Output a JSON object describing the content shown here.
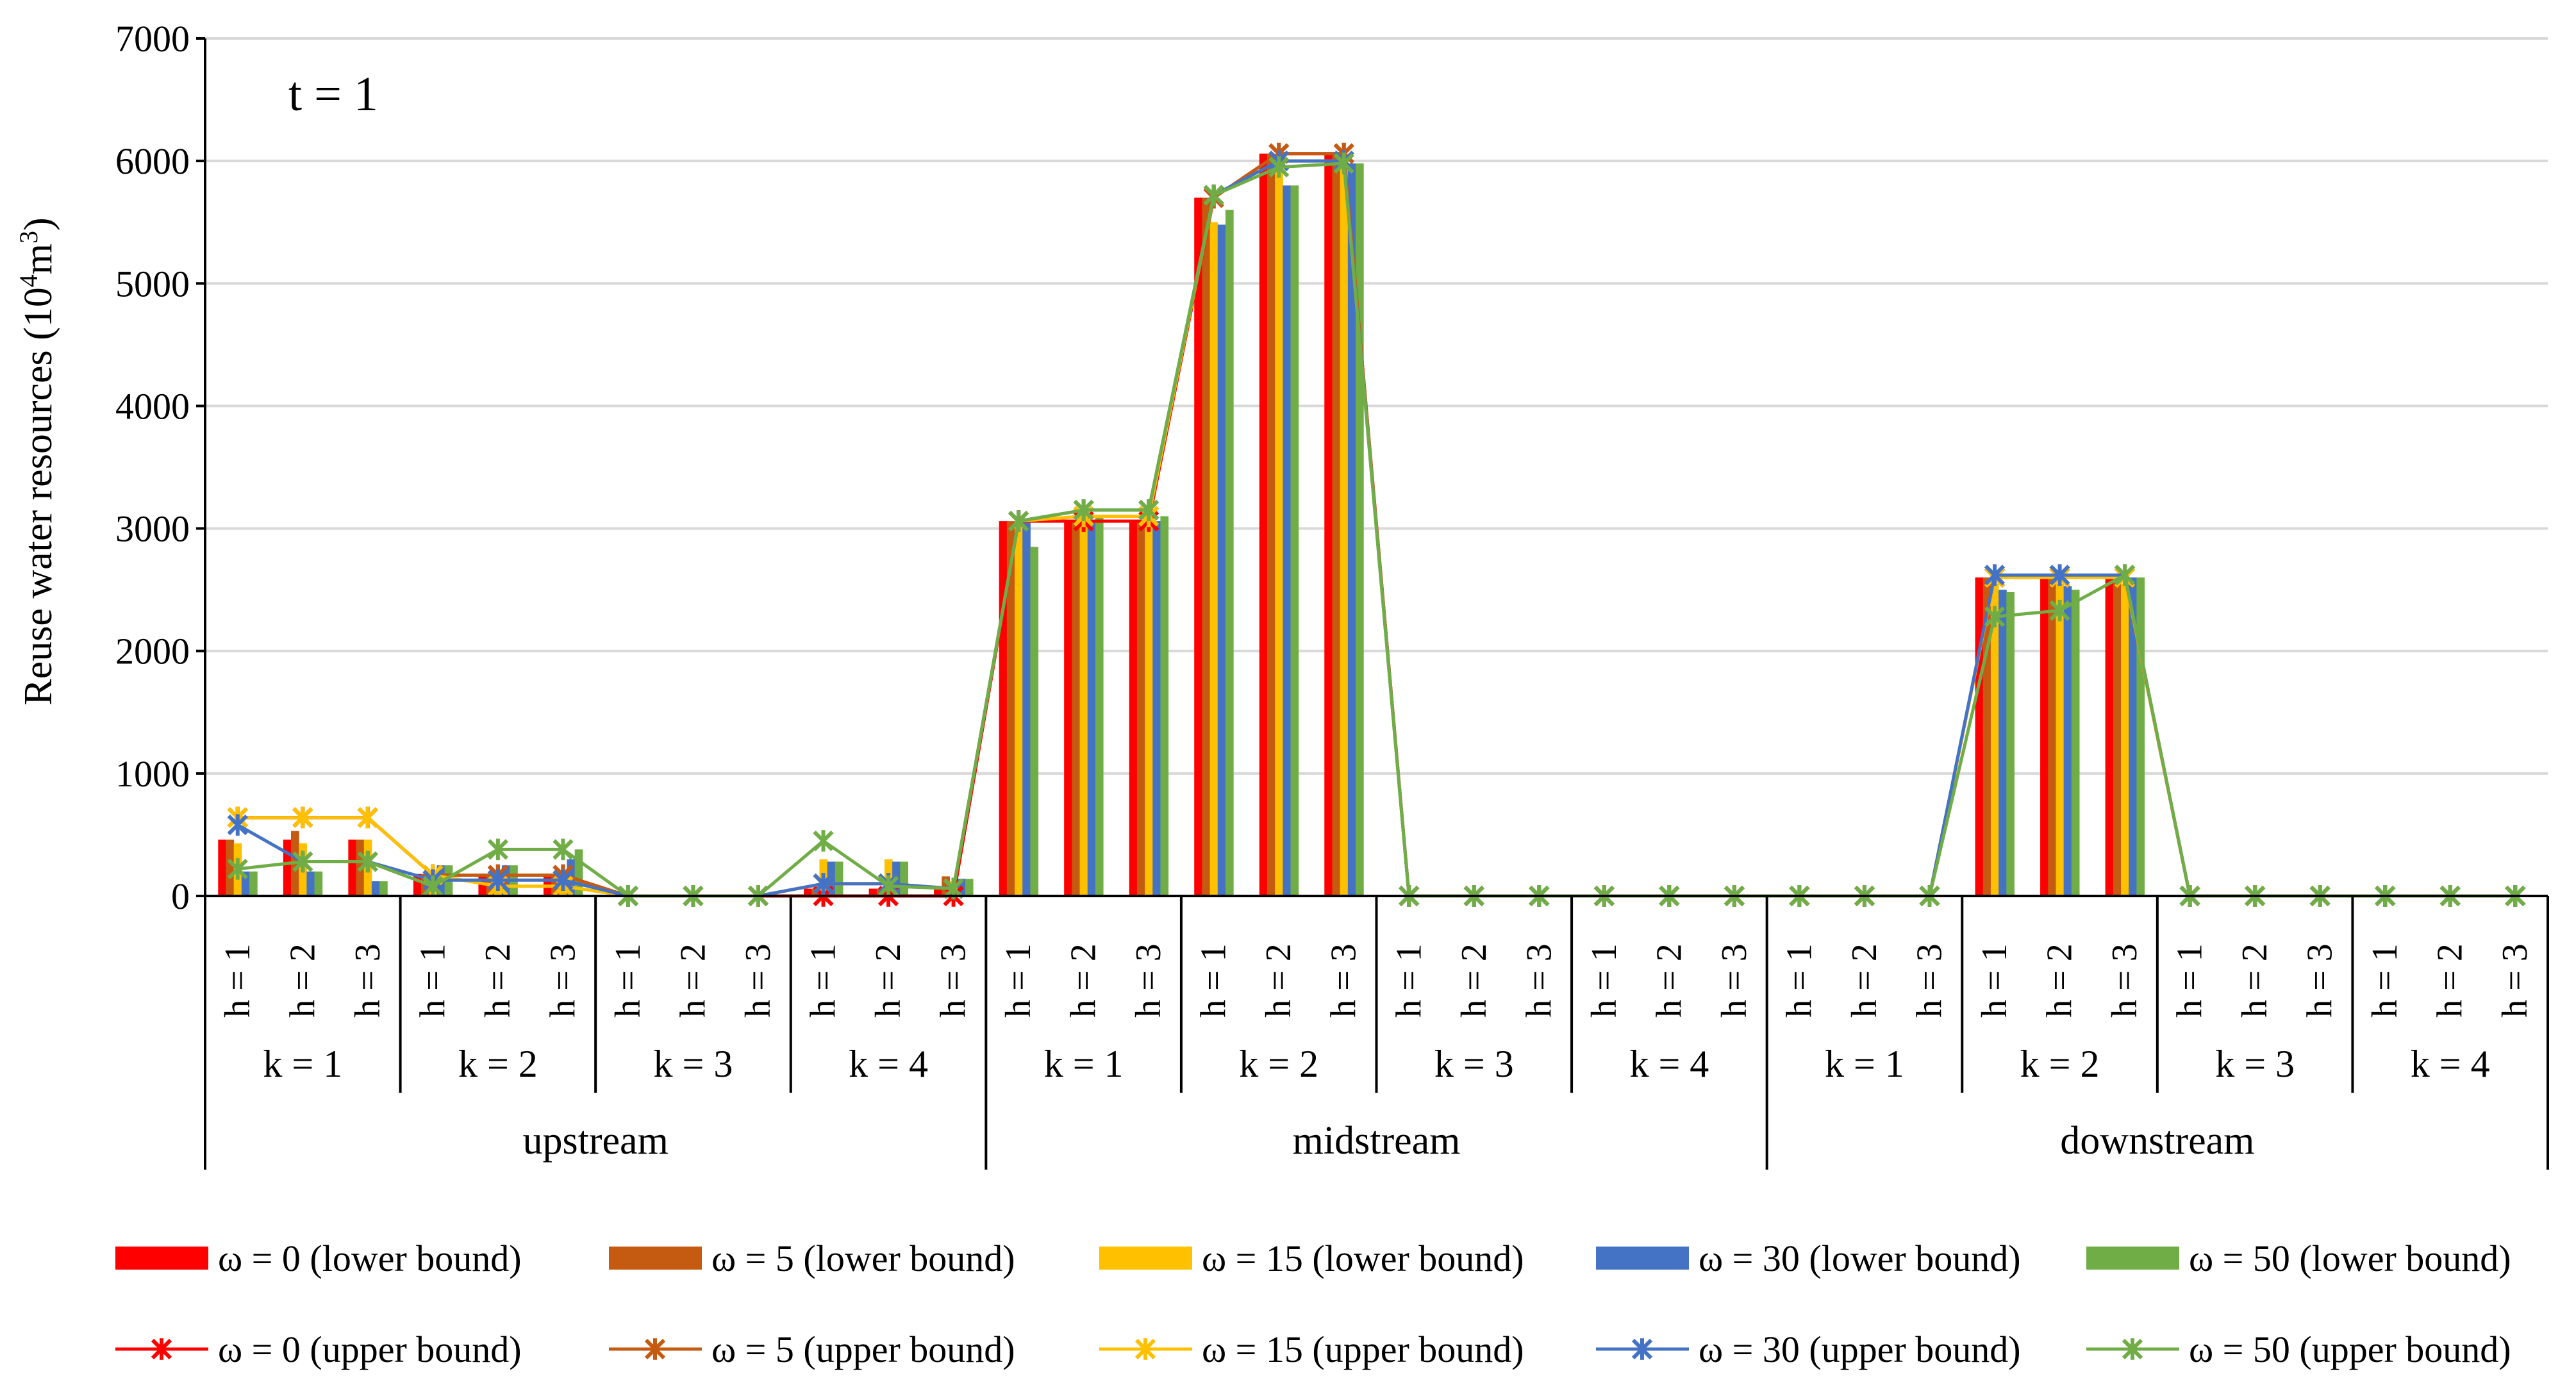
{
  "chart_data": {
    "type": "bar",
    "annotation": "t = 1",
    "ylabel_main": "Reuse water resources (10",
    "ylabel_sup1": "4",
    "ylabel_mid": "m",
    "ylabel_sup2": "3",
    "ylabel_end": ")",
    "ylim": [
      0,
      7000
    ],
    "yticks": [
      "0",
      "1000",
      "2000",
      "3000",
      "4000",
      "5000",
      "6000",
      "7000"
    ],
    "grid": true,
    "legend_position": "bottom",
    "groups": [
      {
        "label": "upstream",
        "ks": [
          {
            "label": "k = 1",
            "hs": [
              "h = 1",
              "h = 2",
              "h = 3"
            ]
          },
          {
            "label": "k = 2",
            "hs": [
              "h = 1",
              "h = 2",
              "h = 3"
            ]
          },
          {
            "label": "k = 3",
            "hs": [
              "h = 1",
              "h = 2",
              "h = 3"
            ]
          },
          {
            "label": "k = 4",
            "hs": [
              "h = 1",
              "h = 2",
              "h = 3"
            ]
          }
        ]
      },
      {
        "label": "midstream",
        "ks": [
          {
            "label": "k = 1",
            "hs": [
              "h = 1",
              "h = 2",
              "h = 3"
            ]
          },
          {
            "label": "k = 2",
            "hs": [
              "h = 1",
              "h = 2",
              "h = 3"
            ]
          },
          {
            "label": "k = 3",
            "hs": [
              "h = 1",
              "h = 2",
              "h = 3"
            ]
          },
          {
            "label": "k = 4",
            "hs": [
              "h = 1",
              "h = 2",
              "h = 3"
            ]
          }
        ]
      },
      {
        "label": "downstream",
        "ks": [
          {
            "label": "k = 1",
            "hs": [
              "h = 1",
              "h = 2",
              "h = 3"
            ]
          },
          {
            "label": "k = 2",
            "hs": [
              "h = 1",
              "h = 2",
              "h = 3"
            ]
          },
          {
            "label": "k = 3",
            "hs": [
              "h = 1",
              "h = 2",
              "h = 3"
            ]
          },
          {
            "label": "k = 4",
            "hs": [
              "h = 1",
              "h = 2",
              "h = 3"
            ]
          }
        ]
      }
    ],
    "bar_series": [
      {
        "name": "ω = 0 (lower bound)",
        "color": "#ff0000",
        "values": [
          460,
          460,
          460,
          180,
          180,
          180,
          0,
          0,
          0,
          60,
          60,
          60,
          3060,
          3060,
          3060,
          5700,
          6060,
          6060,
          0,
          0,
          0,
          0,
          0,
          0,
          0,
          0,
          0,
          2600,
          2600,
          2600,
          0,
          0,
          0,
          0,
          0,
          0
        ]
      },
      {
        "name": "ω = 5 (lower bound)",
        "color": "#c55a11",
        "values": [
          460,
          530,
          460,
          180,
          180,
          180,
          0,
          0,
          0,
          60,
          60,
          160,
          3060,
          3060,
          3060,
          5700,
          6060,
          6060,
          0,
          0,
          0,
          0,
          0,
          0,
          0,
          0,
          0,
          2600,
          2600,
          2600,
          0,
          0,
          0,
          0,
          0,
          0
        ]
      },
      {
        "name": "ω = 15 (lower bound)",
        "color": "#ffc000",
        "values": [
          430,
          430,
          460,
          120,
          60,
          60,
          0,
          0,
          0,
          300,
          300,
          120,
          3060,
          3060,
          3060,
          5500,
          5950,
          6060,
          0,
          0,
          0,
          0,
          0,
          0,
          0,
          0,
          0,
          2550,
          2550,
          2550,
          0,
          0,
          0,
          0,
          0,
          0
        ]
      },
      {
        "name": "ω = 30 (lower bound)",
        "color": "#4472c4",
        "values": [
          200,
          200,
          120,
          250,
          250,
          300,
          0,
          0,
          0,
          280,
          280,
          140,
          3060,
          3060,
          3060,
          5480,
          5800,
          5980,
          0,
          0,
          0,
          0,
          0,
          0,
          0,
          0,
          0,
          2500,
          2530,
          2600,
          0,
          0,
          0,
          0,
          0,
          0
        ]
      },
      {
        "name": "ω = 50 (lower bound)",
        "color": "#70ad47",
        "values": [
          200,
          200,
          120,
          250,
          250,
          380,
          0,
          0,
          0,
          280,
          280,
          140,
          2850,
          3100,
          3100,
          5600,
          5800,
          5980,
          0,
          0,
          0,
          0,
          0,
          0,
          0,
          0,
          0,
          2480,
          2500,
          2600,
          0,
          0,
          0,
          0,
          0,
          0
        ]
      }
    ],
    "line_series": [
      {
        "name": "ω = 0 (upper bound)",
        "color": "#ff0000",
        "values": [
          640,
          640,
          640,
          170,
          170,
          170,
          0,
          0,
          0,
          0,
          0,
          0,
          3060,
          3060,
          3060,
          5700,
          6060,
          6060,
          0,
          0,
          0,
          0,
          0,
          0,
          0,
          0,
          0,
          2600,
          2600,
          2600,
          0,
          0,
          0,
          0,
          0,
          0
        ]
      },
      {
        "name": "ω = 5 (upper bound)",
        "color": "#c55a11",
        "values": [
          640,
          640,
          640,
          170,
          170,
          170,
          0,
          0,
          0,
          100,
          100,
          60,
          3060,
          3100,
          3100,
          5700,
          6060,
          6060,
          0,
          0,
          0,
          0,
          0,
          0,
          0,
          0,
          0,
          2600,
          2600,
          2600,
          0,
          0,
          0,
          0,
          0,
          0
        ]
      },
      {
        "name": "ω = 15 (upper bound)",
        "color": "#ffc000",
        "values": [
          640,
          640,
          640,
          170,
          80,
          80,
          0,
          0,
          0,
          100,
          100,
          60,
          3060,
          3100,
          3100,
          5720,
          6000,
          6000,
          0,
          0,
          0,
          0,
          0,
          0,
          0,
          0,
          0,
          2600,
          2600,
          2600,
          0,
          0,
          0,
          0,
          0,
          0
        ]
      },
      {
        "name": "ω = 30 (upper bound)",
        "color": "#4472c4",
        "values": [
          580,
          280,
          280,
          130,
          130,
          130,
          0,
          0,
          0,
          100,
          100,
          60,
          3060,
          3150,
          3150,
          5720,
          6000,
          6000,
          0,
          0,
          0,
          0,
          0,
          0,
          0,
          0,
          0,
          2620,
          2620,
          2620,
          0,
          0,
          0,
          0,
          0,
          0
        ]
      },
      {
        "name": "ω = 50 (upper bound)",
        "color": "#70ad47",
        "values": [
          220,
          280,
          280,
          80,
          380,
          380,
          0,
          0,
          0,
          450,
          80,
          60,
          3060,
          3150,
          3150,
          5720,
          5950,
          5980,
          0,
          0,
          0,
          0,
          0,
          0,
          0,
          0,
          0,
          2280,
          2330,
          2620,
          0,
          0,
          0,
          0,
          0,
          0
        ]
      }
    ]
  }
}
